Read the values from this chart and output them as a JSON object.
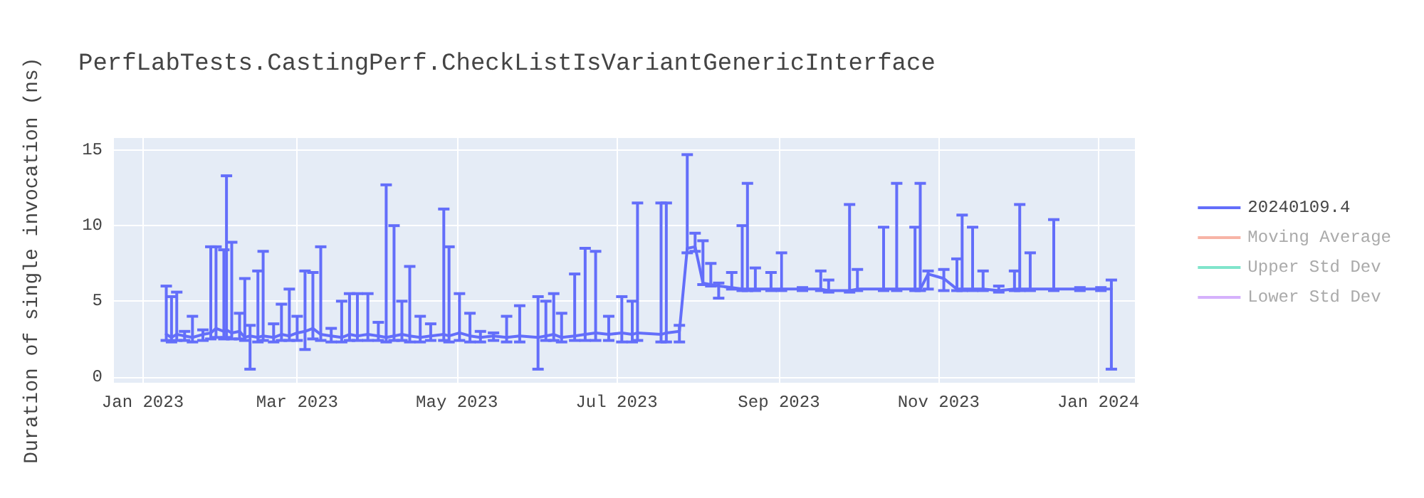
{
  "chart_data": {
    "type": "line",
    "title": "PerfLabTests.CastingPerf.CheckListIsVariantGenericInterface",
    "ylabel": "Duration of single invocation (ns)",
    "x": [
      "2023-01-10",
      "2023-01-12",
      "2023-01-14",
      "2023-01-17",
      "2023-01-20",
      "2023-01-24",
      "2023-01-27",
      "2023-01-29",
      "2023-02-01",
      "2023-02-02",
      "2023-02-04",
      "2023-02-07",
      "2023-02-09",
      "2023-02-11",
      "2023-02-14",
      "2023-02-16",
      "2023-02-20",
      "2023-02-23",
      "2023-02-26",
      "2023-03-01",
      "2023-03-04",
      "2023-03-07",
      "2023-03-10",
      "2023-03-14",
      "2023-03-18",
      "2023-03-21",
      "2023-03-24",
      "2023-03-28",
      "2023-04-01",
      "2023-04-04",
      "2023-04-07",
      "2023-04-10",
      "2023-04-13",
      "2023-04-17",
      "2023-04-21",
      "2023-04-26",
      "2023-04-28",
      "2023-05-02",
      "2023-05-06",
      "2023-05-10",
      "2023-05-15",
      "2023-05-20",
      "2023-05-25",
      "2023-06-01",
      "2023-06-04",
      "2023-06-07",
      "2023-06-10",
      "2023-06-15",
      "2023-06-19",
      "2023-06-23",
      "2023-06-28",
      "2023-07-03",
      "2023-07-07",
      "2023-07-09",
      "2023-07-18",
      "2023-07-20",
      "2023-07-25",
      "2023-07-28",
      "2023-07-31",
      "2023-08-03",
      "2023-08-06",
      "2023-08-09",
      "2023-08-14",
      "2023-08-18",
      "2023-08-20",
      "2023-08-23",
      "2023-08-29",
      "2023-09-02",
      "2023-09-10",
      "2023-09-17",
      "2023-09-20",
      "2023-09-28",
      "2023-10-01",
      "2023-10-11",
      "2023-10-16",
      "2023-10-23",
      "2023-10-25",
      "2023-10-28",
      "2023-11-03",
      "2023-11-08",
      "2023-11-10",
      "2023-11-14",
      "2023-11-18",
      "2023-11-24",
      "2023-11-30",
      "2023-12-02",
      "2023-12-06",
      "2023-12-15",
      "2023-12-25",
      "2024-01-02",
      "2024-01-06"
    ],
    "series": [
      {
        "name": "20240109.4",
        "color": "#636efa",
        "values": [
          2.8,
          2.6,
          2.8,
          2.7,
          2.6,
          2.8,
          2.9,
          3.2,
          3.0,
          3.1,
          2.9,
          3.0,
          2.6,
          2.7,
          2.6,
          2.7,
          2.6,
          2.8,
          2.7,
          2.9,
          3.0,
          3.2,
          2.8,
          2.7,
          2.6,
          2.8,
          2.7,
          2.8,
          2.7,
          2.6,
          2.7,
          2.8,
          2.7,
          2.6,
          2.7,
          2.8,
          2.7,
          2.9,
          2.7,
          2.6,
          2.7,
          2.6,
          2.7,
          2.6,
          2.7,
          2.8,
          2.6,
          2.7,
          2.8,
          2.9,
          2.8,
          2.9,
          2.8,
          2.9,
          2.8,
          2.9,
          3.0,
          8.5,
          8.6,
          6.2,
          6.1,
          6.0,
          5.9,
          5.8,
          5.8,
          5.8,
          5.8,
          5.8,
          5.8,
          5.8,
          5.7,
          5.7,
          5.8,
          5.8,
          5.8,
          5.8,
          5.8,
          6.8,
          6.5,
          5.8,
          5.8,
          5.8,
          5.8,
          5.7,
          5.8,
          5.8,
          5.8,
          5.8,
          5.8,
          5.8,
          5.8
        ],
        "errors": [
          [
            2.4,
            6.0
          ],
          [
            2.3,
            5.3
          ],
          [
            2.4,
            5.6
          ],
          [
            2.4,
            3.0
          ],
          [
            2.3,
            4.0
          ],
          [
            2.4,
            3.1
          ],
          [
            2.5,
            8.6
          ],
          [
            2.6,
            8.6
          ],
          [
            2.5,
            8.4
          ],
          [
            2.6,
            13.3
          ],
          [
            2.5,
            8.9
          ],
          [
            2.5,
            4.2
          ],
          [
            2.4,
            6.5
          ],
          [
            0.5,
            3.4
          ],
          [
            2.3,
            7.0
          ],
          [
            2.4,
            8.3
          ],
          [
            2.3,
            3.5
          ],
          [
            2.4,
            4.8
          ],
          [
            2.4,
            5.8
          ],
          [
            2.4,
            4.0
          ],
          [
            1.8,
            7.0
          ],
          [
            2.5,
            6.9
          ],
          [
            2.4,
            8.6
          ],
          [
            2.3,
            3.2
          ],
          [
            2.3,
            5.0
          ],
          [
            2.4,
            5.5
          ],
          [
            2.4,
            5.5
          ],
          [
            2.4,
            5.5
          ],
          [
            2.4,
            3.6
          ],
          [
            2.3,
            12.7
          ],
          [
            2.4,
            10.0
          ],
          [
            2.4,
            5.0
          ],
          [
            2.3,
            7.3
          ],
          [
            2.3,
            4.0
          ],
          [
            2.4,
            3.5
          ],
          [
            2.4,
            11.1
          ],
          [
            2.3,
            8.6
          ],
          [
            2.4,
            5.5
          ],
          [
            2.3,
            4.2
          ],
          [
            2.3,
            3.0
          ],
          [
            2.4,
            2.9
          ],
          [
            2.3,
            4.0
          ],
          [
            2.3,
            4.7
          ],
          [
            0.5,
            5.3
          ],
          [
            2.4,
            5.0
          ],
          [
            2.4,
            5.5
          ],
          [
            2.3,
            4.2
          ],
          [
            2.4,
            6.8
          ],
          [
            2.4,
            8.5
          ],
          [
            2.4,
            8.3
          ],
          [
            2.4,
            4.0
          ],
          [
            2.3,
            5.3
          ],
          [
            2.3,
            5.0
          ],
          [
            2.4,
            11.5
          ],
          [
            2.3,
            11.5
          ],
          [
            2.3,
            11.5
          ],
          [
            2.3,
            3.4
          ],
          [
            8.2,
            14.7
          ],
          [
            8.3,
            9.5
          ],
          [
            6.1,
            9.0
          ],
          [
            6.0,
            7.5
          ],
          [
            5.2,
            6.2
          ],
          [
            5.8,
            6.9
          ],
          [
            5.7,
            10.0
          ],
          [
            5.7,
            12.8
          ],
          [
            5.7,
            7.2
          ],
          [
            5.7,
            6.9
          ],
          [
            5.7,
            8.2
          ],
          [
            5.7,
            5.9
          ],
          [
            5.7,
            7.0
          ],
          [
            5.6,
            6.4
          ],
          [
            5.6,
            11.4
          ],
          [
            5.7,
            7.1
          ],
          [
            5.7,
            9.9
          ],
          [
            5.7,
            12.8
          ],
          [
            5.7,
            9.9
          ],
          [
            5.7,
            12.8
          ],
          [
            5.8,
            7.0
          ],
          [
            5.7,
            7.1
          ],
          [
            5.7,
            7.8
          ],
          [
            5.7,
            10.7
          ],
          [
            5.7,
            9.9
          ],
          [
            5.7,
            7.0
          ],
          [
            5.6,
            6.0
          ],
          [
            5.7,
            7.0
          ],
          [
            5.7,
            11.4
          ],
          [
            5.7,
            8.2
          ],
          [
            5.7,
            10.4
          ],
          [
            5.7,
            5.9
          ],
          [
            5.7,
            5.9
          ],
          [
            0.5,
            6.4
          ]
        ]
      },
      {
        "name": "Moving Average",
        "color": "#f7b4a6",
        "values": [
          null,
          null,
          null,
          null,
          null,
          null,
          null,
          null,
          null,
          null,
          null,
          null,
          null,
          null,
          null,
          null,
          null,
          null,
          null,
          null,
          null,
          null,
          null,
          null,
          null,
          null,
          null,
          null,
          null,
          null,
          null,
          null,
          null,
          null,
          null,
          null,
          null,
          null,
          null,
          null,
          null,
          null,
          null,
          null,
          null,
          null,
          null,
          null,
          null,
          null,
          null,
          null,
          null,
          null,
          null,
          null,
          null,
          null,
          null,
          null,
          null,
          null,
          null,
          null,
          null,
          null,
          null,
          null,
          null,
          null,
          null,
          null,
          null,
          null,
          null,
          null,
          null,
          null,
          null,
          null,
          null,
          null,
          null,
          null,
          null,
          null,
          null,
          null,
          null,
          null,
          null
        ]
      },
      {
        "name": "Upper Std Dev",
        "color": "#80e5cb",
        "values": [
          null,
          null,
          null,
          null,
          null,
          null,
          null,
          null,
          null,
          null,
          null,
          null,
          null,
          null,
          null,
          null,
          null,
          null,
          null,
          null,
          null,
          null,
          null,
          null,
          null,
          null,
          null,
          null,
          null,
          null,
          null,
          null,
          null,
          null,
          null,
          null,
          null,
          null,
          null,
          null,
          null,
          null,
          null,
          null,
          null,
          null,
          null,
          null,
          null,
          null,
          null,
          null,
          null,
          null,
          null,
          null,
          null,
          null,
          null,
          null,
          null,
          null,
          null,
          null,
          null,
          null,
          null,
          null,
          null,
          null,
          null,
          null,
          null,
          null,
          null,
          null,
          null,
          null,
          null,
          null,
          null,
          null,
          null,
          null,
          null,
          null,
          null,
          null,
          null,
          null,
          null
        ]
      },
      {
        "name": "Lower Std Dev",
        "color": "#d5b1fc",
        "values": [
          null,
          null,
          null,
          null,
          null,
          null,
          null,
          null,
          null,
          null,
          null,
          null,
          null,
          null,
          null,
          null,
          null,
          null,
          null,
          null,
          null,
          null,
          null,
          null,
          null,
          null,
          null,
          null,
          null,
          null,
          null,
          null,
          null,
          null,
          null,
          null,
          null,
          null,
          null,
          null,
          null,
          null,
          null,
          null,
          null,
          null,
          null,
          null,
          null,
          null,
          null,
          null,
          null,
          null,
          null,
          null,
          null,
          null,
          null,
          null,
          null,
          null,
          null,
          null,
          null,
          null,
          null,
          null,
          null,
          null,
          null,
          null,
          null,
          null,
          null,
          null,
          null,
          null,
          null,
          null,
          null,
          null,
          null,
          null,
          null,
          null,
          null,
          null,
          null,
          null,
          null
        ]
      }
    ],
    "xlim": [
      "2022-12-21",
      "2024-01-15"
    ],
    "xticks": [
      {
        "value": "2023-01-01",
        "label": "Jan 2023"
      },
      {
        "value": "2023-03-01",
        "label": "Mar 2023"
      },
      {
        "value": "2023-05-01",
        "label": "May 2023"
      },
      {
        "value": "2023-07-01",
        "label": "Jul 2023"
      },
      {
        "value": "2023-09-01",
        "label": "Sep 2023"
      },
      {
        "value": "2023-11-01",
        "label": "Nov 2023"
      },
      {
        "value": "2024-01-01",
        "label": "Jan 2024"
      }
    ],
    "ylim": [
      -0.4,
      15.8
    ],
    "yticks": [
      0,
      5,
      10,
      15
    ],
    "grid": true,
    "legend": "top right",
    "marker": "none",
    "line_style": "solid"
  }
}
